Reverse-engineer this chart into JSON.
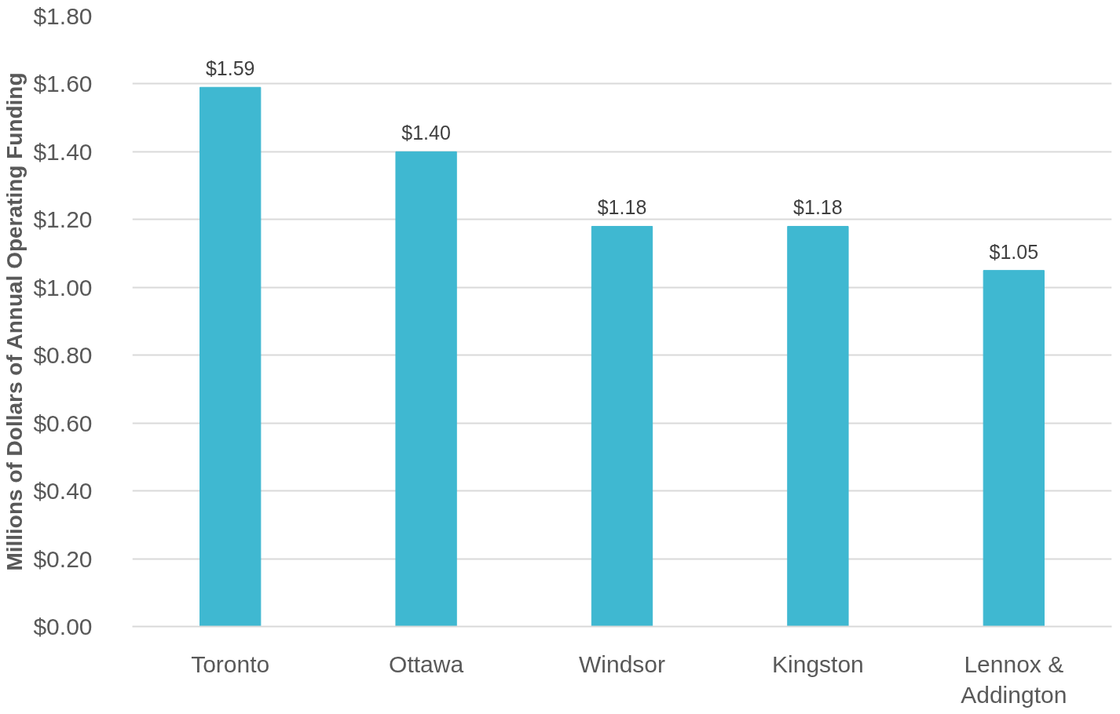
{
  "chart_data": {
    "type": "bar",
    "ylabel": "Millions of Dollars of Annual Operating Funding",
    "categories": [
      "Toronto",
      "Ottawa",
      "Windsor",
      "Kingston",
      "Lennox & Addington"
    ],
    "values": [
      1.59,
      1.4,
      1.18,
      1.18,
      1.05
    ],
    "color": "#3fb8d1",
    "value_labels": [
      "$1.59",
      "$1.40",
      "$1.18",
      "$1.18",
      "$1.05"
    ],
    "ylim": [
      0,
      1.8
    ],
    "yticks": [
      {
        "value": 0,
        "label": "$0.00"
      },
      {
        "value": 0.2,
        "label": "$0.20"
      },
      {
        "value": 0.4,
        "label": "$0.40"
      },
      {
        "value": 0.6,
        "label": "$0.60"
      },
      {
        "value": 0.8,
        "label": "$0.80"
      },
      {
        "value": 1.0,
        "label": "$1.00"
      },
      {
        "value": 1.2,
        "label": "$1.20"
      },
      {
        "value": 1.4,
        "label": "$1.40"
      },
      {
        "value": 1.6,
        "label": "$1.60"
      },
      {
        "value": 1.8,
        "label": "$1.80"
      }
    ],
    "grid": "y"
  }
}
